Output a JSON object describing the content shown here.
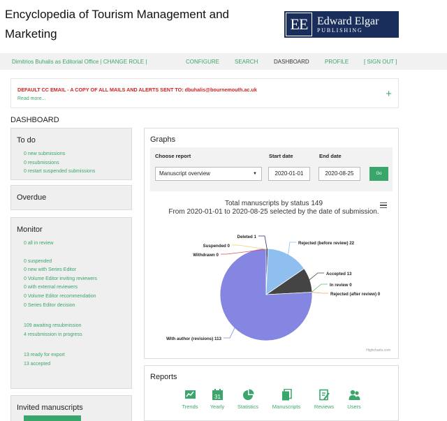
{
  "header": {
    "site_title": "Encyclopedia of Tourism Management and Marketing",
    "logo_mark": "EE",
    "logo_line1": "Edward Elgar",
    "logo_line2": "PUBLISHING"
  },
  "topbar": {
    "user_text": "Dimitrios Buhalis as Editorial Office | CHANGE ROLE |",
    "nav": [
      "CONFIGURE",
      "SEARCH",
      "DASHBOARD",
      "PROFILE",
      "[ SIGN OUT ]"
    ],
    "active": "DASHBOARD"
  },
  "alert": {
    "message": "DEFAULT CC EMAIL - A COPY OF ALL MAILS AND ALERTS SENT TO: dbuhalis@bournemouth.ac.uk",
    "read_more": "Read more...",
    "toggle": "+"
  },
  "dashboard_title": "DASHBOARD",
  "todo": {
    "title": "To do",
    "links": [
      "0 new submissions",
      "0 resubmissions",
      "0 restart suspended submissions"
    ]
  },
  "overdue": {
    "title": "Overdue"
  },
  "monitor": {
    "title": "Monitor",
    "group1": [
      "0 all in review"
    ],
    "group2": [
      "0 suspended",
      "0 new with Series Editor",
      "0 Volume Editor inviting reviewers",
      "0 with external reviewers",
      "0 Volume Editor recommendation",
      "0 Series Editor decision"
    ],
    "group3": [
      "109 awaiting resubmission",
      "4 resubmission in progress"
    ],
    "group4": [
      "13 ready for export",
      "13 accepted"
    ]
  },
  "invited": {
    "title": "Invited manuscripts"
  },
  "graphs": {
    "title": "Graphs",
    "col_report": "Choose report",
    "col_start": "Start date",
    "col_end": "End date",
    "report_value": "Manuscript overview",
    "start_value": "2020-01-01",
    "end_value": "2020-08-25",
    "go_label": "Go"
  },
  "chart_data": {
    "type": "pie",
    "title": "Total manuscripts by status 149",
    "subtitle": "From 2020-01-01 to 2020-08-25 selected by the date of submission.",
    "credit": "Highcharts.com",
    "slices": [
      {
        "label": "Deleted",
        "value": 1,
        "color": "#2b2f6b"
      },
      {
        "label": "Rejected (before review)",
        "value": 22,
        "color": "#8fbfef"
      },
      {
        "label": "Accepted",
        "value": 13,
        "color": "#444444"
      },
      {
        "label": "In review",
        "value": 0,
        "color": "#5cbf73"
      },
      {
        "label": "Rejected (after review)",
        "value": 0,
        "color": "#f0a860"
      },
      {
        "label": "With author (revisions)",
        "value": 113,
        "color": "#8585e2"
      },
      {
        "label": "Withdrawn",
        "value": 0,
        "color": "#e05060"
      },
      {
        "label": "Suspended",
        "value": 0,
        "color": "#e7d46a"
      }
    ]
  },
  "reports": {
    "title": "Reports",
    "items": [
      {
        "label": "Trends",
        "icon": "trends-icon"
      },
      {
        "label": "Yearly",
        "icon": "calendar-icon"
      },
      {
        "label": "Statistics",
        "icon": "pie-chart-icon"
      },
      {
        "label": "Manuscripts",
        "icon": "documents-icon"
      },
      {
        "label": "Reviews",
        "icon": "review-icon"
      },
      {
        "label": "Users",
        "icon": "users-icon"
      }
    ],
    "calendar_day": "31"
  }
}
